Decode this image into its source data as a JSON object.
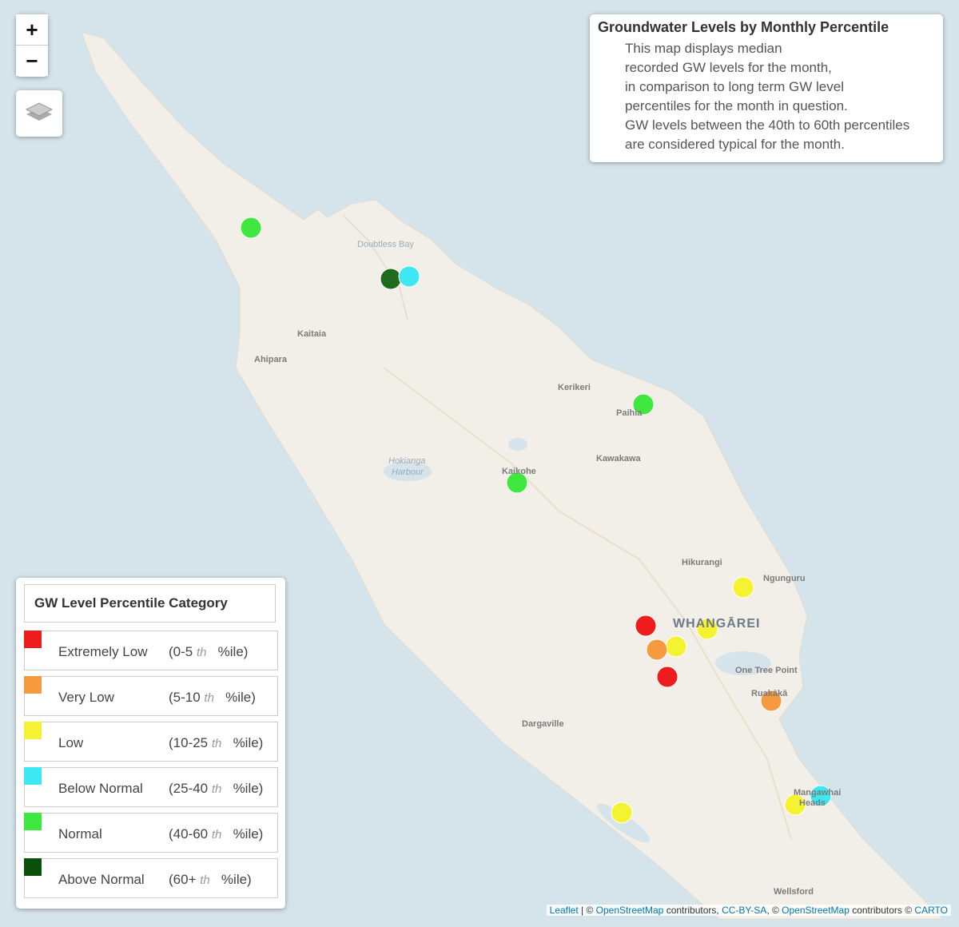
{
  "zoom": {
    "in": "+",
    "out": "−"
  },
  "info": {
    "title": "Groundwater Levels by Monthly Percentile",
    "lines": [
      "This map displays median",
      "recorded GW levels for the month,",
      "in comparison to long term GW level",
      "percentiles for the month in question.",
      "GW levels between the 40th to 60th percentiles",
      "are considered typical for the month."
    ]
  },
  "legend": {
    "title": "GW Level Percentile Category",
    "items": [
      {
        "name": "Extremely Low",
        "range": "(0-5",
        "ordinal": "th",
        "unit": "%ile)",
        "color": "#ee1c1c"
      },
      {
        "name": "Very Low",
        "range": "(5-10",
        "ordinal": "th",
        "unit": "%ile)",
        "color": "#f59a3e"
      },
      {
        "name": "Low",
        "range": "(10-25",
        "ordinal": "th",
        "unit": "%ile)",
        "color": "#f5f232"
      },
      {
        "name": "Below Normal",
        "range": "(25-40",
        "ordinal": "th",
        "unit": "%ile)",
        "color": "#3ee8f2"
      },
      {
        "name": "Normal",
        "range": "(40-60",
        "ordinal": "th",
        "unit": "%ile)",
        "color": "#3ee83e"
      },
      {
        "name": "Above Normal",
        "range": "(60+",
        "ordinal": "th",
        "unit": "%ile)",
        "color": "#0a4f0a"
      }
    ]
  },
  "places": [
    "Doubtless Bay",
    "Kaitaia",
    "Ahipara",
    "Kerikeri",
    "Paihia",
    "Hokianga",
    "Harbour",
    "Kaikohe",
    "Kawakawa",
    "Hikurangi",
    "Ngunguru",
    "WHANGĀREI",
    "One Tree Point",
    "Ruakākā",
    "Dargaville",
    "Mangawhai",
    "Heads",
    "Wellsford"
  ],
  "attribution": [
    "Leaflet",
    " | © ",
    "OpenStreetMap",
    " contributors, ",
    "CC-BY-SA",
    ", © ",
    "OpenStreetMap",
    " contributors © ",
    "CARTO"
  ]
}
